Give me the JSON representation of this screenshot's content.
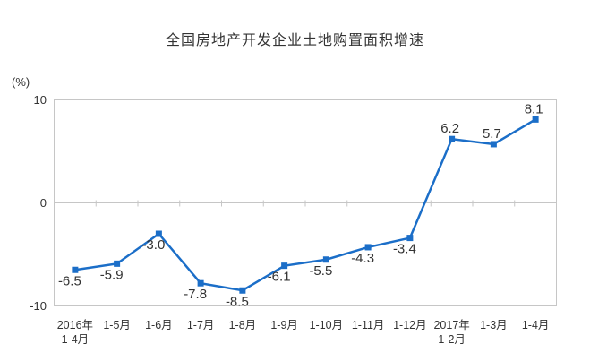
{
  "title": "全国房地产开发企业土地购置面积增速",
  "y_axis": {
    "unit": "(%)"
  },
  "chart_data": {
    "type": "line",
    "title": "全国房地产开发企业土地购置面积增速",
    "categories": [
      "2016年\n1-4月",
      "1-5月",
      "1-6月",
      "1-7月",
      "1-8月",
      "1-9月",
      "1-10月",
      "1-11月",
      "1-12月",
      "2017年\n1-2月",
      "1-3月",
      "1-4月"
    ],
    "values": [
      -6.5,
      -5.9,
      -3.0,
      -7.8,
      -8.5,
      -6.1,
      -5.5,
      -4.3,
      -3.4,
      6.2,
      5.7,
      8.1
    ],
    "ylabel": "(%)",
    "xlabel": "",
    "ylim": [
      -10,
      10
    ],
    "yticks": [
      10,
      0,
      -10
    ],
    "legend": "none",
    "grid": "border-box with gridline at 0 only, category tick marks on zero axis",
    "marker": "square",
    "data_labels": "every point, one decimal place",
    "colors": {
      "line": "#1b6ec8",
      "marker": "#1b6ec8",
      "axis": "#c6c6c6",
      "tick_text": "#333333",
      "data_label_text": "#333333",
      "title_text": "#333333"
    }
  }
}
